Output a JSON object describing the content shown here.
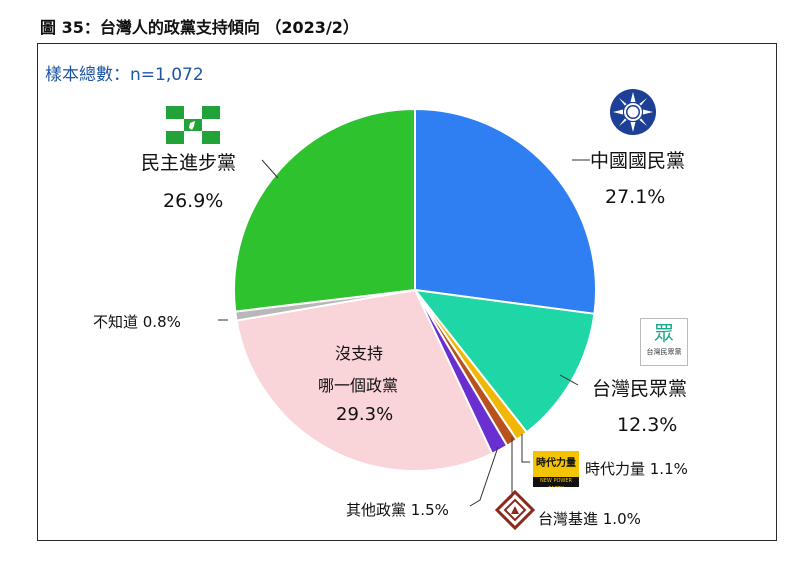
{
  "title": "圖 35：台灣人的政黨支持傾向 （2023/2）",
  "sample_note": "樣本總數：n=1,072",
  "chart_data": {
    "type": "pie",
    "title": "台灣人的政黨支持傾向 （2023/2）",
    "start_angle_deg": 0,
    "direction": "clockwise",
    "slices": [
      {
        "label": "中國國民黨",
        "value": 27.1,
        "value_text": "27.1%",
        "color": "#2f7ef2"
      },
      {
        "label": "台灣民眾黨",
        "value": 12.3,
        "value_text": "12.3%",
        "color": "#1fd6a7"
      },
      {
        "label": "時代力量",
        "value": 1.1,
        "value_text": "1.1%",
        "color": "#f2b705"
      },
      {
        "label": "台灣基進",
        "value": 1.0,
        "value_text": "1.0%",
        "color": "#b8521c"
      },
      {
        "label": "其他政黨",
        "value": 1.5,
        "value_text": "1.5%",
        "color": "#6a2fd0"
      },
      {
        "label": "沒支持哪一個政黨",
        "value": 29.3,
        "value_text": "29.3%",
        "color": "#f9d4d8"
      },
      {
        "label": "不知道",
        "value": 0.8,
        "value_text": "0.8%",
        "color": "#b8b8b8"
      },
      {
        "label": "民主進步黨",
        "value": 26.9,
        "value_text": "26.9%",
        "color": "#2fc22f"
      }
    ]
  },
  "labels": {
    "kmt": {
      "name": "中國國民黨",
      "pct": "27.1%"
    },
    "tpp": {
      "name": "台灣民眾黨",
      "pct": "12.3%",
      "logo_text": "眾",
      "logo_sub": "台灣民眾黨"
    },
    "npp": {
      "text": "時代力量 1.1%",
      "logo_text": "時代力量",
      "logo_sub": "NEW POWER PARTY"
    },
    "tsp": {
      "text": "台灣基進 1.0%"
    },
    "other": {
      "text": "其他政黨 1.5%"
    },
    "none": {
      "line1": "沒支持",
      "line2": "哪一個政黨",
      "pct": "29.3%"
    },
    "unknown": {
      "text": "不知道 0.8%"
    },
    "dpp": {
      "name": "民主進步黨",
      "pct": "26.9%"
    }
  }
}
